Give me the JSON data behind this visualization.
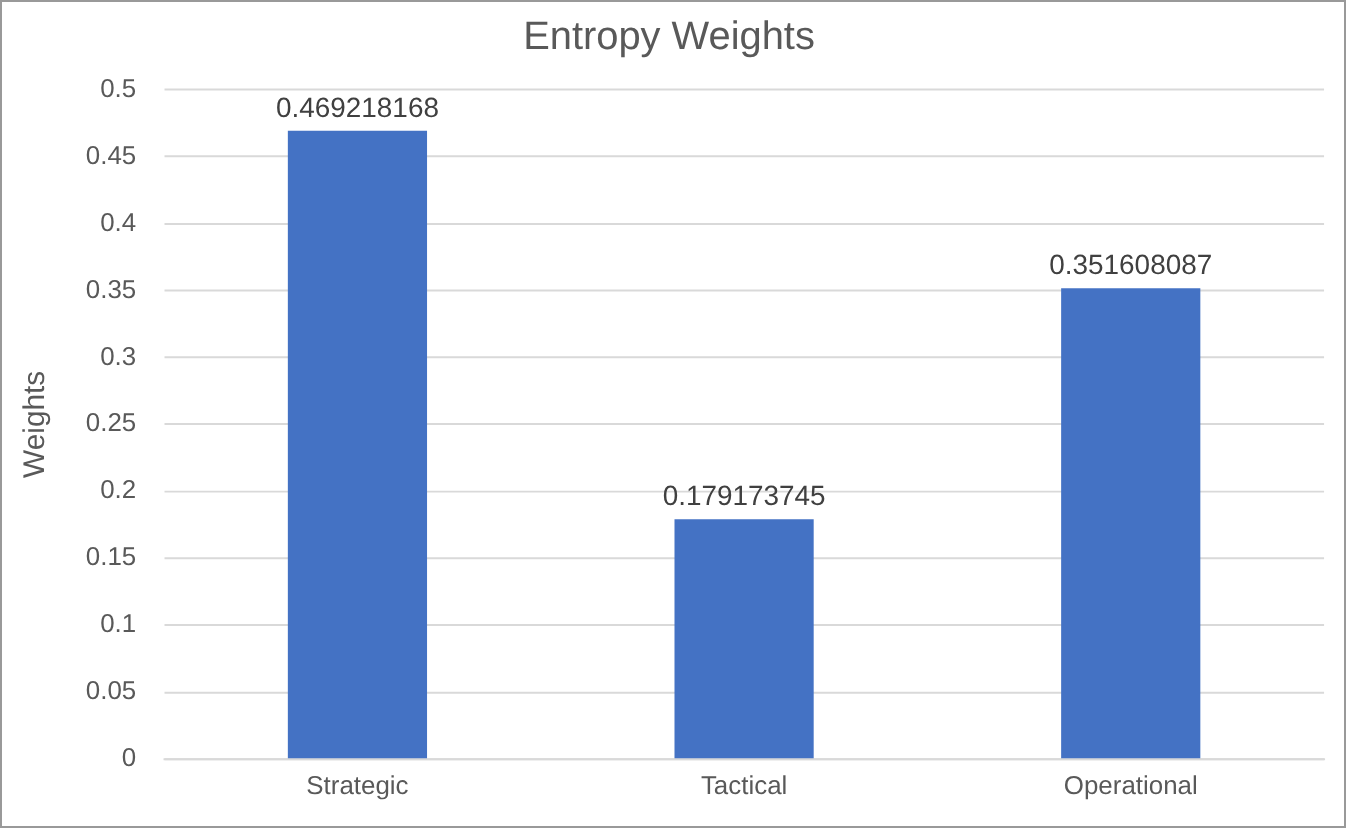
{
  "chart_data": {
    "type": "bar",
    "title": "Entropy Weights",
    "ylabel": "Weights",
    "categories": [
      "Strategic",
      "Tactical",
      "Operational"
    ],
    "values": [
      0.469218168,
      0.179173745,
      0.351608087
    ],
    "color": "#4472c4",
    "ylim": [
      0,
      0.5
    ],
    "yticks": [
      0,
      0.05,
      0.1,
      0.15,
      0.2,
      0.25,
      0.3,
      0.35,
      0.4,
      0.45,
      0.5
    ],
    "grid": "y",
    "data_labels": true
  }
}
